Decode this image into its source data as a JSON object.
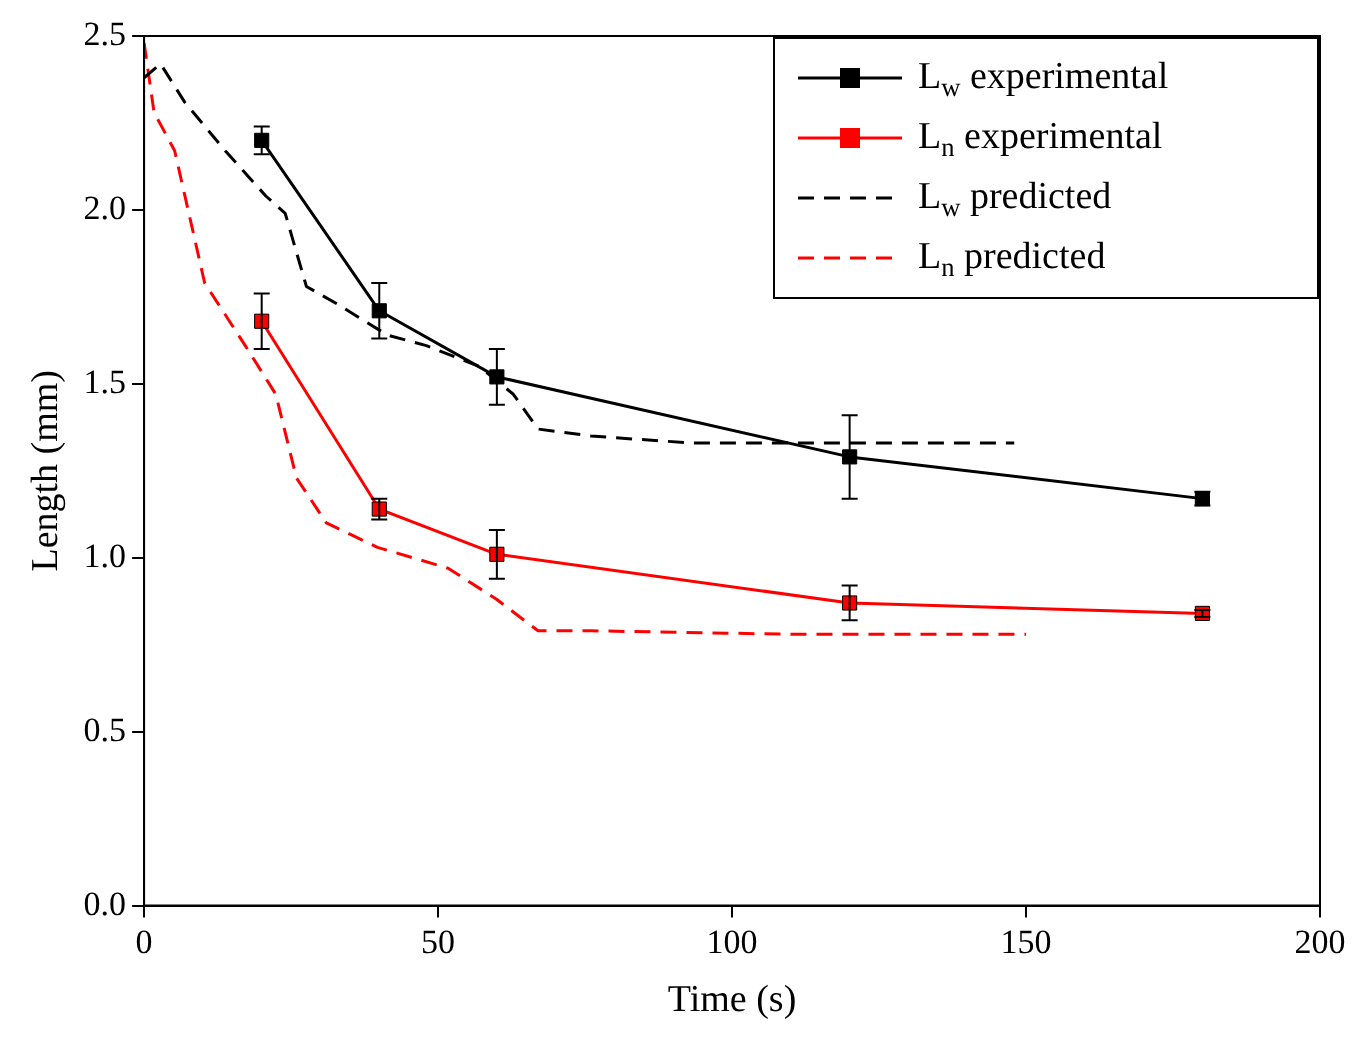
{
  "chart_data": {
    "type": "line",
    "xlabel": "Time (s)",
    "ylabel": "Length (mm)",
    "xlim": [
      0,
      200
    ],
    "xticks": [
      0,
      50,
      100,
      150,
      200
    ],
    "ylim": [
      0,
      2.5
    ],
    "yticks": [
      {
        "value": 0,
        "label": "0.0"
      },
      {
        "value": 0.5,
        "label": "0.5"
      },
      {
        "value": 1,
        "label": "1.0"
      },
      {
        "value": 1.5,
        "label": "1.5"
      },
      {
        "value": 2,
        "label": "2.0"
      },
      {
        "value": 2.5,
        "label": "2.5"
      }
    ],
    "grid": false,
    "legend": "top right",
    "series": [
      {
        "name": "L$_{w}$ experimental",
        "color": "#000000",
        "marker": "square",
        "line_style": "solid",
        "x": [
          20,
          40,
          60,
          120,
          180
        ],
        "values": [
          2.2,
          1.71,
          1.52,
          1.29,
          1.17
        ],
        "errors": [
          0.04,
          0.08,
          0.08,
          0.12,
          0.02
        ]
      },
      {
        "name": "L$_{n}$ experimental",
        "color": "#ff0000",
        "marker": "square",
        "line_style": "solid",
        "x": [
          20,
          40,
          60,
          120,
          180
        ],
        "values": [
          1.68,
          1.14,
          1.01,
          0.87,
          0.84
        ],
        "errors": [
          0.08,
          0.03,
          0.07,
          0.05,
          0.01
        ]
      },
      {
        "name": "L$_{w}$ predicted",
        "color": "#000000",
        "marker": "none",
        "line_style": "dashed",
        "x": [
          0,
          2.8,
          6.9,
          13.8,
          20.7,
          24,
          27.6,
          32.8,
          41.4,
          48,
          57,
          62.8,
          67,
          76,
          93,
          148
        ],
        "values": [
          2.38,
          2.42,
          2.31,
          2.17,
          2.04,
          1.99,
          1.78,
          1.73,
          1.64,
          1.61,
          1.55,
          1.47,
          1.37,
          1.35,
          1.33,
          1.33
        ]
      },
      {
        "name": "L$_{n}$ predicted",
        "color": "#ff0000",
        "marker": "none",
        "line_style": "dashed",
        "x": [
          0,
          1.7,
          5.2,
          10.3,
          17.2,
          22.4,
          25.9,
          31,
          39.7,
          51.7,
          60,
          67,
          76,
          110,
          150
        ],
        "values": [
          2.48,
          2.28,
          2.17,
          1.79,
          1.61,
          1.47,
          1.23,
          1.1,
          1.03,
          0.97,
          0.88,
          0.79,
          0.79,
          0.78,
          0.78
        ]
      }
    ]
  }
}
